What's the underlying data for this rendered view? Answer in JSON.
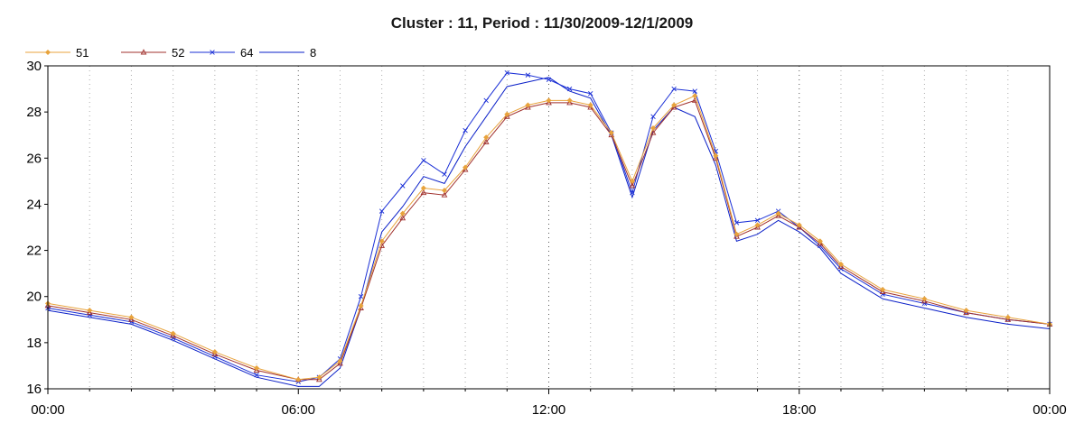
{
  "chart_data": {
    "type": "line",
    "title": "Cluster : 11, Period : 11/30/2009-12/1/2009",
    "xlabel": "",
    "ylabel": "",
    "x_ticks": [
      "00:00",
      "06:00",
      "12:00",
      "18:00",
      "00:00"
    ],
    "y_ticks": [
      "16",
      "18",
      "20",
      "22",
      "24",
      "26",
      "28",
      "30"
    ],
    "xlim": [
      "2009-11-30 00:00",
      "2009-12-01 00:00"
    ],
    "ylim": [
      16,
      30
    ],
    "grid": "dotted vertical",
    "legend_position": "top-left",
    "x_times": [
      "00:00",
      "01:00",
      "02:00",
      "03:00",
      "04:00",
      "05:00",
      "06:00",
      "06:30",
      "07:00",
      "07:30",
      "08:00",
      "08:30",
      "09:00",
      "09:30",
      "10:00",
      "10:30",
      "11:00",
      "11:30",
      "12:00",
      "12:30",
      "13:00",
      "13:30",
      "14:00",
      "14:30",
      "15:00",
      "15:30",
      "16:00",
      "16:30",
      "17:00",
      "17:30",
      "18:00",
      "18:30",
      "19:00",
      "20:00",
      "21:00",
      "22:00",
      "23:00",
      "24:00"
    ],
    "series": [
      {
        "name": "51",
        "color": "#e8a33c",
        "marker": "diamond",
        "values": [
          19.7,
          19.4,
          19.1,
          18.4,
          17.6,
          16.9,
          16.4,
          16.5,
          17.2,
          19.6,
          22.4,
          23.6,
          24.7,
          24.6,
          25.6,
          26.9,
          27.9,
          28.3,
          28.5,
          28.5,
          28.3,
          27.1,
          25.0,
          27.3,
          28.3,
          28.7,
          26.1,
          22.7,
          23.1,
          23.6,
          23.1,
          22.4,
          21.4,
          20.3,
          19.9,
          19.4,
          19.1,
          18.8
        ]
      },
      {
        "name": "52",
        "color": "#a0302c",
        "marker": "triangle",
        "values": [
          19.6,
          19.3,
          19.0,
          18.3,
          17.5,
          16.8,
          16.4,
          16.4,
          17.1,
          19.5,
          22.2,
          23.4,
          24.5,
          24.4,
          25.5,
          26.7,
          27.8,
          28.2,
          28.4,
          28.4,
          28.2,
          27.0,
          24.8,
          27.1,
          28.2,
          28.5,
          26.0,
          22.6,
          23.0,
          23.5,
          23.0,
          22.3,
          21.3,
          20.2,
          19.8,
          19.3,
          19.0,
          18.8
        ]
      },
      {
        "name": "64",
        "color": "#1a2fd6",
        "marker": "x",
        "values": [
          19.5,
          19.2,
          18.9,
          18.2,
          17.4,
          16.6,
          16.3,
          16.5,
          17.3,
          20.0,
          23.7,
          24.8,
          25.9,
          25.3,
          27.2,
          28.5,
          29.7,
          29.6,
          29.4,
          29.0,
          28.8,
          27.1,
          24.5,
          27.8,
          29.0,
          28.9,
          26.3,
          23.2,
          23.3,
          23.7,
          23.0,
          22.2,
          21.2,
          20.1,
          19.7,
          19.3,
          19.0,
          18.8
        ]
      },
      {
        "name": "8",
        "color": "#0a1fc8",
        "marker": "none",
        "values": [
          19.4,
          19.1,
          18.8,
          18.1,
          17.3,
          16.5,
          16.1,
          16.1,
          16.9,
          19.5,
          22.8,
          23.9,
          25.2,
          24.9,
          26.5,
          27.8,
          29.1,
          29.3,
          29.5,
          28.9,
          28.6,
          27.0,
          24.3,
          27.2,
          28.2,
          27.8,
          25.7,
          22.4,
          22.7,
          23.3,
          22.8,
          22.1,
          21.0,
          19.9,
          19.5,
          19.1,
          18.8,
          18.6
        ]
      }
    ]
  }
}
